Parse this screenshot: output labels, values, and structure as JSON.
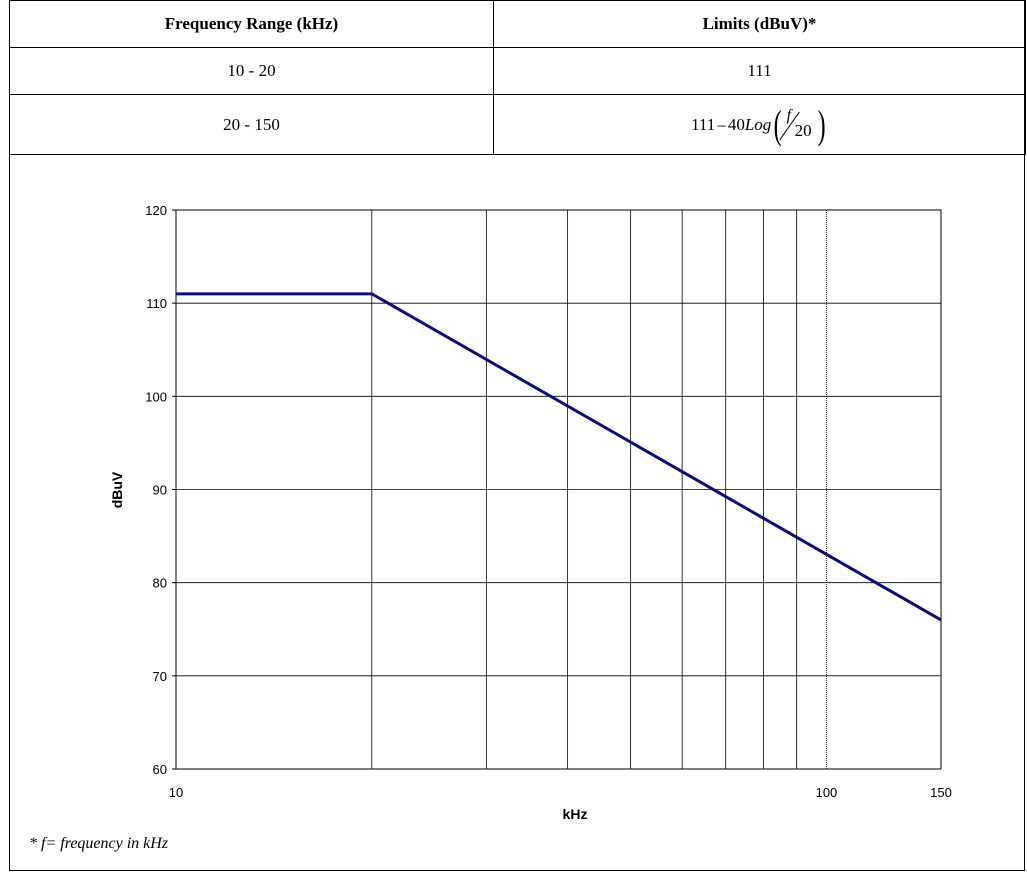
{
  "table": {
    "headers": [
      "Frequency Range (kHz)",
      "Limits (dBuV)*"
    ],
    "rows": [
      {
        "range": "10 - 20",
        "limit": "111"
      },
      {
        "range": "20 - 150",
        "limit_formula": {
          "constant": "111",
          "operator": "–",
          "coefficient": "40",
          "func": "Log",
          "numerator": "f",
          "denominator": "20"
        }
      }
    ]
  },
  "chart_data": {
    "type": "line",
    "xscale": "log",
    "xlim": [
      10,
      150
    ],
    "ylim": [
      60,
      120
    ],
    "xlabel": "kHz",
    "ylabel": "dBuV",
    "xticks": [
      "10",
      "100",
      "150"
    ],
    "yticks": [
      120,
      110,
      100,
      90,
      80,
      70,
      60
    ],
    "vertical_gridlines": [
      20,
      30,
      40,
      50,
      60,
      70,
      80,
      90,
      100
    ],
    "grid": true,
    "line_color": "#0a0a80",
    "series": [
      {
        "x": [
          10,
          20,
          150
        ],
        "y": [
          111,
          111,
          76
        ]
      }
    ]
  },
  "footnote": "* f= frequency in kHz"
}
